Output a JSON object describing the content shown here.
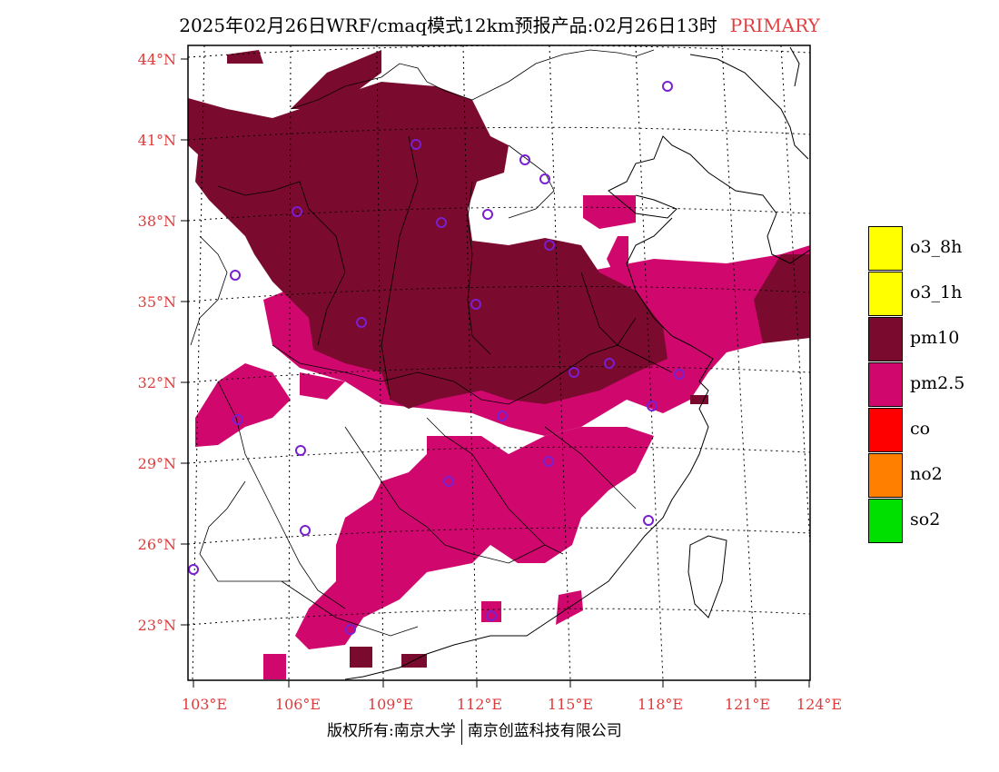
{
  "header": {
    "title": "2025年02月26日WRF/cmaq模式12km预报产品:02月26日13时",
    "tag": "PRIMARY"
  },
  "map": {
    "lat_labels": [
      "44°N",
      "41°N",
      "38°N",
      "35°N",
      "32°N",
      "29°N",
      "26°N",
      "23°N"
    ],
    "lon_labels": [
      "103°E",
      "106°E",
      "109°E",
      "112°E",
      "115°E",
      "118°E",
      "121°E",
      "124°E"
    ],
    "station_marker_color": "#7a1fd0"
  },
  "legend": {
    "items": [
      {
        "label": "o3_8h",
        "color": "#ffff00"
      },
      {
        "label": "o3_1h",
        "color": "#ffff00"
      },
      {
        "label": "pm10",
        "color": "#7a0a2e"
      },
      {
        "label": "pm2.5",
        "color": "#d0086e"
      },
      {
        "label": "co",
        "color": "#ff0000"
      },
      {
        "label": "no2",
        "color": "#ff8000"
      },
      {
        "label": "so2",
        "color": "#00e000"
      }
    ]
  },
  "footer": {
    "left": "版权所有:南京大学",
    "right": "南京创蓝科技有限公司"
  }
}
